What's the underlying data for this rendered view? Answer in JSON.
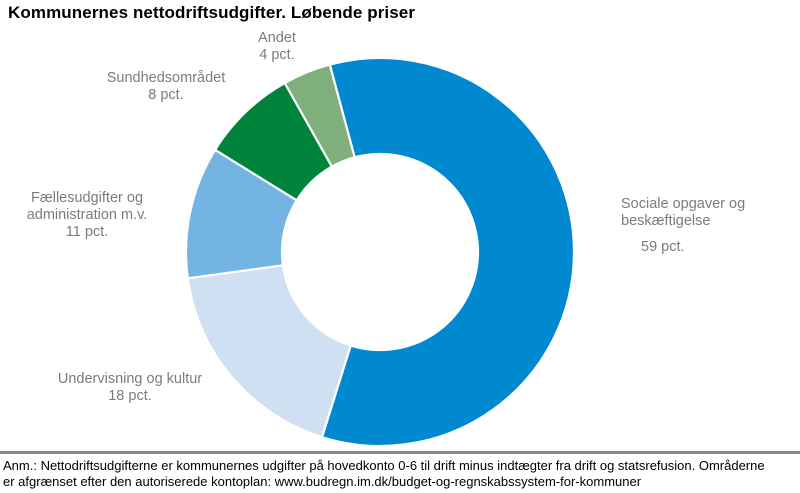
{
  "title": "Kommunernes nettodriftsudgifter. Løbende priser",
  "chart_data": {
    "type": "pie",
    "subtype": "donut",
    "title": "Kommunernes nettodriftsudgifter. Løbende priser",
    "unit": "pct.",
    "start_angle_deg": -15,
    "hole_ratio": 0.505,
    "divider_color": "#ffffff",
    "label_color": "#7D7D74",
    "legend": "callout-labels",
    "segments": [
      {
        "label": "Sociale opgaver og beskæftigelse",
        "value": 59,
        "pct_label": "59 pct.",
        "color": "#0089D0"
      },
      {
        "label": "Undervisning og kultur",
        "value": 18,
        "pct_label": "18 pct.",
        "color": "#CFE0F2"
      },
      {
        "label": "Fællesudgifter og administration m.v.",
        "value": 11,
        "pct_label": "11 pct.",
        "color": "#74B4E2"
      },
      {
        "label": "Sundhedsområdet",
        "value": 8,
        "pct_label": "8 pct.",
        "color": "#00843B"
      },
      {
        "label": "Andet",
        "value": 4,
        "pct_label": "4 pct.",
        "color": "#7FAF7A"
      }
    ]
  },
  "footnote": {
    "line1": "Anm.: Nettodriftsudgifterne er kommunernes udgifter på hovedkonto 0-6 til drift minus indtægter fra drift og statsrefusion. Områderne",
    "line2": "er afgrænset efter den autoriserede kontoplan: www.budregn.im.dk/budget-og-regnskabssystem-for-kommuner",
    "rule_color": "#7E8E8E"
  }
}
